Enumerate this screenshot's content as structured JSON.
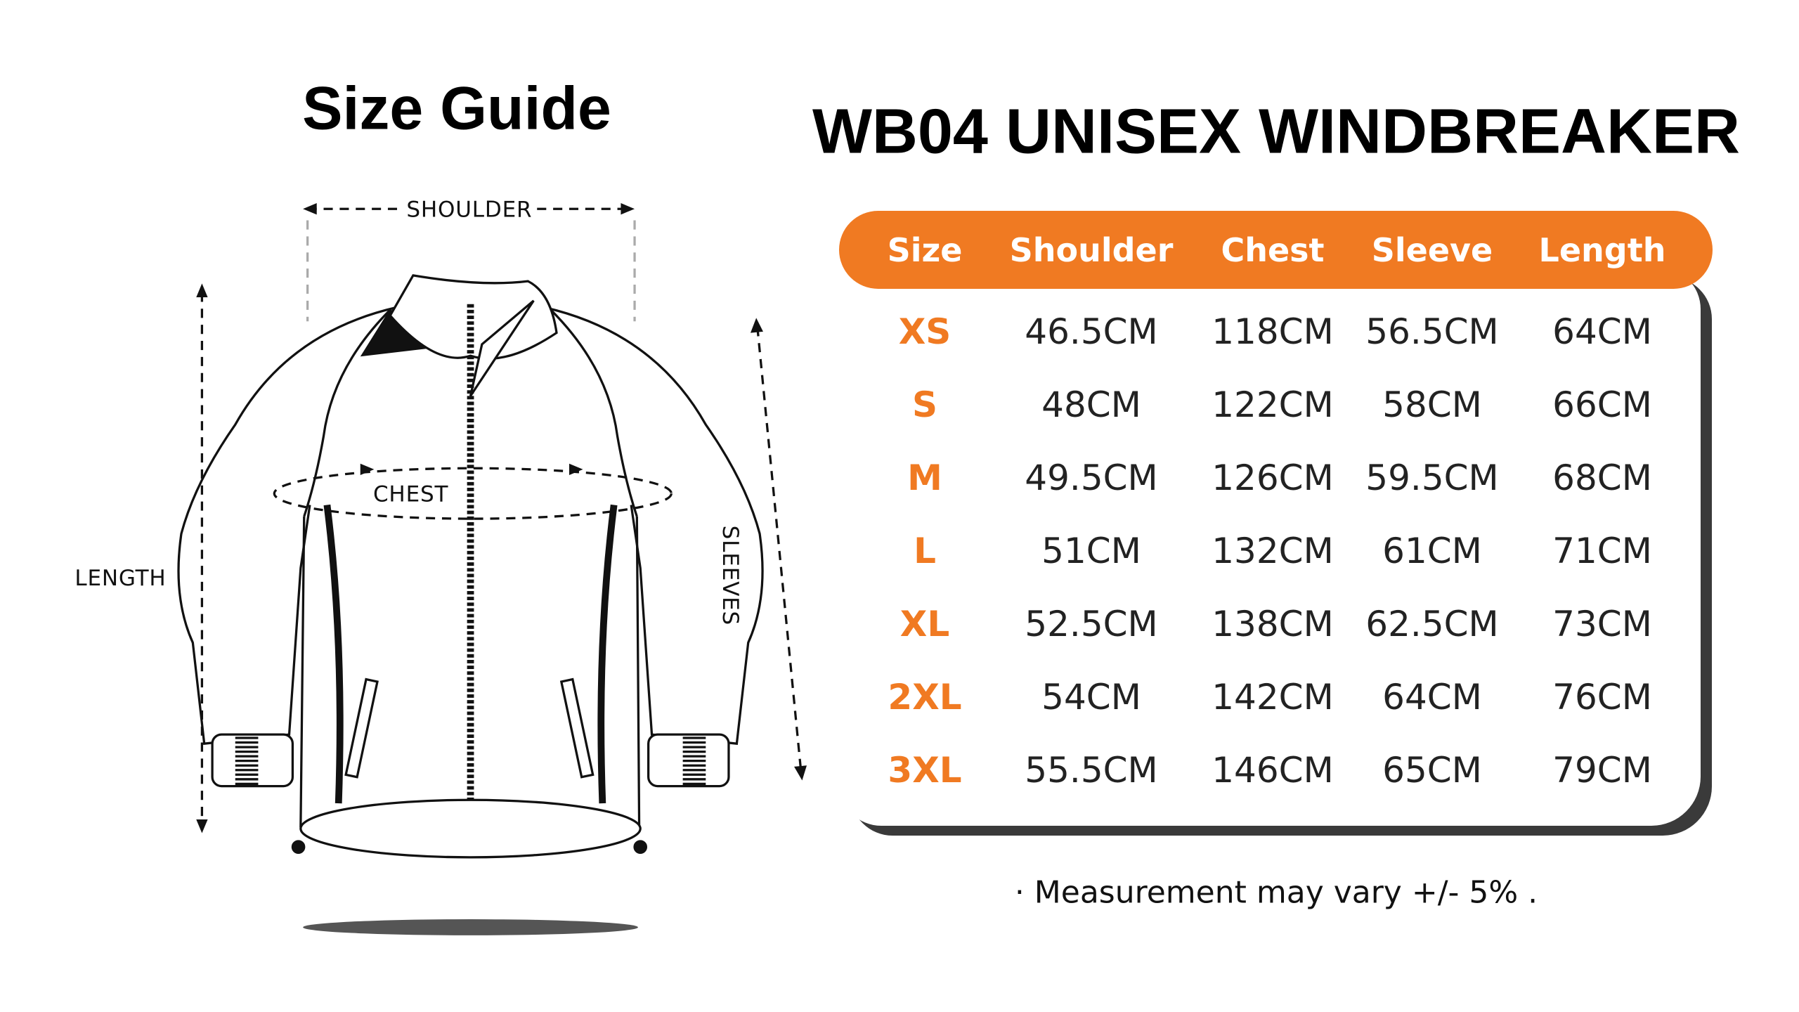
{
  "page_title": "Size Guide",
  "diagram": {
    "shoulder": "SHOULDER",
    "chest": "CHEST",
    "length": "LENGTH",
    "sleeves": "SLEEVES"
  },
  "product_title": "WB04 UNISEX WINDBREAKER",
  "table": {
    "header": [
      "Size",
      "Shoulder",
      "Chest",
      "Sleeve",
      "Length"
    ],
    "rows": [
      [
        "XS",
        "46.5CM",
        "118CM",
        "56.5CM",
        "64CM"
      ],
      [
        "S",
        "48CM",
        "122CM",
        "58CM",
        "66CM"
      ],
      [
        "M",
        "49.5CM",
        "126CM",
        "59.5CM",
        "68CM"
      ],
      [
        "L",
        "51CM",
        "132CM",
        "61CM",
        "71CM"
      ],
      [
        "XL",
        "52.5CM",
        "138CM",
        "62.5CM",
        "73CM"
      ],
      [
        "2XL",
        "54CM",
        "142CM",
        "64CM",
        "76CM"
      ],
      [
        "3XL",
        "55.5CM",
        "146CM",
        "65CM",
        "79CM"
      ]
    ]
  },
  "note": "· Measurement may vary +/- 5% ."
}
